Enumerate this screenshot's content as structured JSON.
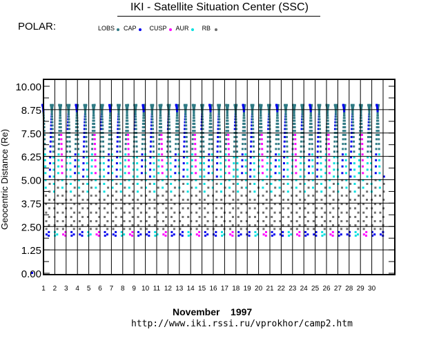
{
  "header": {
    "title": "IKI - Satellite Situation Center (SSC)",
    "satellite": "POLAR:"
  },
  "legend": [
    {
      "label": "LOBS",
      "color": "#2f7a84"
    },
    {
      "label": "CAP",
      "color": "#0000ee"
    },
    {
      "label": "CUSP",
      "color": "#ff00ff"
    },
    {
      "label": "AUR",
      "color": "#00e0e0"
    },
    {
      "label": "RB",
      "color": "#6e6e6e"
    }
  ],
  "footer": {
    "month_label": "November    1997",
    "url": "http://www.iki.rssi.ru/vprokhor/camp2.htm"
  },
  "chart_data": {
    "type": "scatter",
    "title": "IKI - Satellite Situation Center (SSC)",
    "xlabel": "November 1997",
    "ylabel": "Geocentric Distance (Re)",
    "x_ticks": [
      "1",
      "2",
      "3",
      "4",
      "5",
      "6",
      "7",
      "8",
      "9",
      "10",
      "11",
      "12",
      "13",
      "14",
      "15",
      "16",
      "17",
      "18",
      "19",
      "20",
      "21",
      "22",
      "23",
      "24",
      "25",
      "26",
      "27",
      "28",
      "29",
      "30"
    ],
    "y_ticks": [
      "0.00",
      "1.25",
      "2.50",
      "3.75",
      "5.00",
      "6.25",
      "7.50",
      "8.75",
      "10.00"
    ],
    "xlim": [
      1,
      32
    ],
    "ylim": [
      0,
      10.3
    ],
    "grid": true,
    "legend_position": "top-left",
    "orbit": {
      "apogee_re": 9.0,
      "perigee_re": 2.0,
      "period_days": 0.738,
      "start_day": 1.0,
      "end_day": 31.0
    },
    "series": [
      {
        "name": "LOBS",
        "color": "#2f7a84",
        "range_re": [
          6.0,
          9.0
        ]
      },
      {
        "name": "CAP",
        "color": "#0000ee",
        "range_re": [
          2.0,
          9.0
        ]
      },
      {
        "name": "CUSP",
        "color": "#ff00ff",
        "range_re": [
          2.0,
          8.2
        ]
      },
      {
        "name": "AUR",
        "color": "#00e0e0",
        "range_re": [
          2.0,
          6.5
        ]
      },
      {
        "name": "RB",
        "color": "#6e6e6e",
        "range_re": [
          2.0,
          5.0
        ]
      }
    ]
  }
}
